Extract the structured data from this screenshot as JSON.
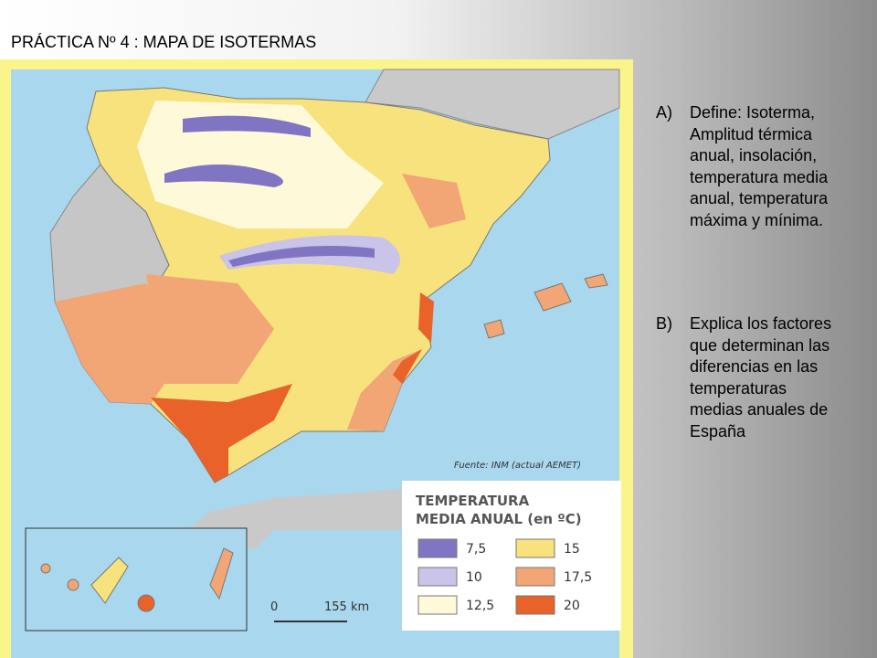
{
  "title": "PRÁCTICA Nº 4 : MAPA DE ISOTERMAS",
  "map": {
    "source": "Fuente: INM (actual AEMET)",
    "legend": {
      "title_lines": [
        "TEMPERATURA",
        "MEDIA ANUAL (en ºC)"
      ],
      "items": [
        {
          "label": "7,5",
          "color": "#8075c2"
        },
        {
          "label": "15",
          "color": "#f7e27e"
        },
        {
          "label": "10",
          "color": "#c9c4e8"
        },
        {
          "label": "17,5",
          "color": "#f2a675"
        },
        {
          "label": "12,5",
          "color": "#fdf9d9"
        },
        {
          "label": "20",
          "color": "#e8622a"
        }
      ]
    },
    "scale": {
      "start": "0",
      "end": "155 km"
    }
  },
  "questions": [
    {
      "marker": "A)",
      "lines": [
        "Define: Isoterma,",
        "Amplitud térmica",
        "anual, insolación,",
        "temperatura media",
        "anual, temperatura",
        "máxima y mínima."
      ]
    },
    {
      "marker": "B)",
      "lines": [
        "Explica los factores",
        "que determinan las",
        "diferencias en las",
        "temperaturas",
        "medias anuales de",
        "España"
      ]
    }
  ]
}
